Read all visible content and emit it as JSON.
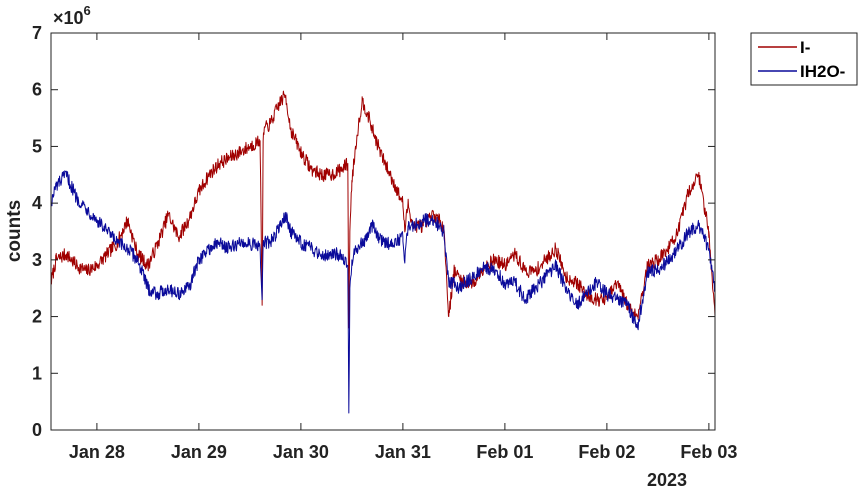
{
  "chart_data": {
    "type": "line",
    "xlabel": "",
    "ylabel": "counts",
    "y_multiplier_label": "×10",
    "y_multiplier_exponent": "6",
    "xlim": [
      27.55,
      34.06
    ],
    "ylim": [
      0,
      7
    ],
    "y_ticks": [
      0,
      1,
      2,
      3,
      4,
      5,
      6,
      7
    ],
    "x_ticks": [
      {
        "value": 28,
        "label": "Jan 28"
      },
      {
        "value": 29,
        "label": "Jan 29"
      },
      {
        "value": 30,
        "label": "Jan 30"
      },
      {
        "value": 31,
        "label": "Jan 31"
      },
      {
        "value": 32,
        "label": "Feb 01"
      },
      {
        "value": 33,
        "label": "Feb 02"
      },
      {
        "value": 34,
        "label": "Feb 03"
      }
    ],
    "x_secondary_label": "2023",
    "grid": false,
    "legend_position": "outside-top-right",
    "series": [
      {
        "name": "I-",
        "color": "#a00000",
        "noise": 0.12,
        "x": [
          27.55,
          27.6,
          27.7,
          27.8,
          27.9,
          28.0,
          28.1,
          28.2,
          28.3,
          28.4,
          28.5,
          28.6,
          28.7,
          28.8,
          28.9,
          29.0,
          29.1,
          29.2,
          29.3,
          29.4,
          29.5,
          29.6,
          29.62,
          29.63,
          29.64,
          29.7,
          29.8,
          29.85,
          29.9,
          30.0,
          30.1,
          30.2,
          30.3,
          30.4,
          30.46,
          30.47,
          30.48,
          30.5,
          30.55,
          30.6,
          30.65,
          30.7,
          30.8,
          30.9,
          31.0,
          31.02,
          31.05,
          31.1,
          31.2,
          31.3,
          31.4,
          31.45,
          31.5,
          31.55,
          31.6,
          31.7,
          31.8,
          31.9,
          32.0,
          32.1,
          32.2,
          32.3,
          32.4,
          32.5,
          32.6,
          32.7,
          32.8,
          32.9,
          33.0,
          33.1,
          33.2,
          33.3,
          33.4,
          33.5,
          33.6,
          33.7,
          33.8,
          33.9,
          34.0,
          34.06
        ],
        "y": [
          2.6,
          3.0,
          3.1,
          2.9,
          2.8,
          2.9,
          3.1,
          3.3,
          3.7,
          3.1,
          2.9,
          3.3,
          3.8,
          3.4,
          3.7,
          4.2,
          4.5,
          4.7,
          4.8,
          4.9,
          5.0,
          5.1,
          2.2,
          5.1,
          5.3,
          5.4,
          5.8,
          5.9,
          5.3,
          4.9,
          4.6,
          4.5,
          4.5,
          4.6,
          4.7,
          1.8,
          3.5,
          4.4,
          5.2,
          5.8,
          5.6,
          5.3,
          4.8,
          4.4,
          4.0,
          3.5,
          4.0,
          3.6,
          3.6,
          3.8,
          3.6,
          2.0,
          2.8,
          2.7,
          2.6,
          2.6,
          2.9,
          3.0,
          2.9,
          3.1,
          2.8,
          2.8,
          3.0,
          3.2,
          2.7,
          2.6,
          2.4,
          2.3,
          2.3,
          2.6,
          2.2,
          2.0,
          2.9,
          3.0,
          3.2,
          3.5,
          4.2,
          4.5,
          3.5,
          2.0
        ]
      },
      {
        "name": "IH2O-",
        "color": "#0a0a9a",
        "noise": 0.12,
        "x": [
          27.55,
          27.6,
          27.7,
          27.8,
          27.9,
          28.0,
          28.1,
          28.2,
          28.3,
          28.4,
          28.5,
          28.6,
          28.7,
          28.8,
          28.9,
          29.0,
          29.1,
          29.2,
          29.3,
          29.4,
          29.5,
          29.6,
          29.62,
          29.63,
          29.64,
          29.7,
          29.8,
          29.85,
          29.9,
          30.0,
          30.1,
          30.2,
          30.3,
          30.4,
          30.46,
          30.47,
          30.48,
          30.5,
          30.55,
          30.6,
          30.65,
          30.7,
          30.8,
          30.9,
          31.0,
          31.02,
          31.05,
          31.1,
          31.2,
          31.3,
          31.4,
          31.45,
          31.5,
          31.55,
          31.6,
          31.7,
          31.8,
          31.9,
          32.0,
          32.1,
          32.2,
          32.3,
          32.4,
          32.5,
          32.6,
          32.7,
          32.8,
          32.9,
          33.0,
          33.1,
          33.2,
          33.3,
          33.4,
          33.5,
          33.6,
          33.7,
          33.8,
          33.9,
          34.0,
          34.06
        ],
        "y": [
          4.0,
          4.3,
          4.5,
          4.1,
          3.9,
          3.7,
          3.5,
          3.3,
          3.2,
          3.0,
          2.5,
          2.4,
          2.5,
          2.4,
          2.5,
          3.0,
          3.2,
          3.3,
          3.2,
          3.3,
          3.3,
          3.2,
          2.3,
          3.3,
          3.3,
          3.3,
          3.6,
          3.8,
          3.5,
          3.3,
          3.2,
          3.1,
          3.1,
          3.1,
          2.9,
          0.3,
          2.5,
          3.0,
          3.2,
          3.3,
          3.4,
          3.6,
          3.3,
          3.3,
          3.4,
          3.0,
          3.6,
          3.6,
          3.7,
          3.7,
          3.5,
          2.6,
          2.6,
          2.5,
          2.6,
          2.7,
          2.9,
          2.8,
          2.6,
          2.6,
          2.3,
          2.5,
          2.7,
          2.9,
          2.5,
          2.2,
          2.4,
          2.6,
          2.4,
          2.3,
          2.2,
          1.8,
          2.8,
          2.8,
          3.0,
          3.2,
          3.5,
          3.6,
          3.2,
          2.5
        ]
      }
    ]
  }
}
